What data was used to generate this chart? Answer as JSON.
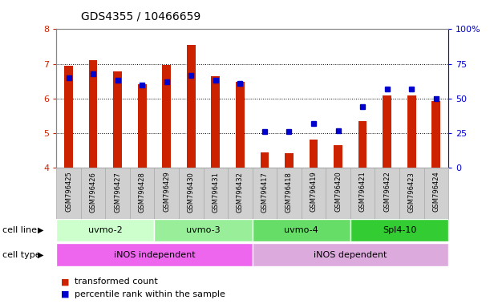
{
  "title": "GDS4355 / 10466659",
  "samples": [
    "GSM796425",
    "GSM796426",
    "GSM796427",
    "GSM796428",
    "GSM796429",
    "GSM796430",
    "GSM796431",
    "GSM796432",
    "GSM796417",
    "GSM796418",
    "GSM796419",
    "GSM796420",
    "GSM796421",
    "GSM796422",
    "GSM796423",
    "GSM796424"
  ],
  "transformed_count": [
    6.95,
    7.1,
    6.78,
    6.42,
    6.97,
    7.55,
    6.65,
    6.48,
    4.45,
    4.43,
    4.82,
    4.65,
    5.35,
    6.08,
    6.08,
    5.93
  ],
  "percentile_rank": [
    65,
    68,
    63,
    60,
    62,
    67,
    63,
    61,
    26,
    26,
    32,
    27,
    44,
    57,
    57,
    50
  ],
  "bar_color": "#cc2200",
  "dot_color": "#0000cc",
  "ylim_left": [
    4,
    8
  ],
  "ylim_right": [
    0,
    100
  ],
  "yticks_left": [
    4,
    5,
    6,
    7,
    8
  ],
  "yticks_right": [
    0,
    25,
    50,
    75,
    100
  ],
  "cell_line_groups": [
    {
      "label": "uvmo-2",
      "start": 0,
      "end": 3,
      "color": "#ccffcc"
    },
    {
      "label": "uvmo-3",
      "start": 4,
      "end": 7,
      "color": "#99ee99"
    },
    {
      "label": "uvmo-4",
      "start": 8,
      "end": 11,
      "color": "#66dd66"
    },
    {
      "label": "Spl4-10",
      "start": 12,
      "end": 15,
      "color": "#33cc33"
    }
  ],
  "cell_type_groups": [
    {
      "label": "iNOS independent",
      "start": 0,
      "end": 7,
      "color": "#ee66ee"
    },
    {
      "label": "iNOS dependent",
      "start": 8,
      "end": 15,
      "color": "#ddaadd"
    }
  ],
  "cell_line_label": "cell line",
  "cell_type_label": "cell type",
  "legend_red_label": "transformed count",
  "legend_blue_label": "percentile rank within the sample",
  "bar_color_legend": "#cc2200",
  "dot_color_legend": "#0000cc",
  "background_color": "#ffffff",
  "right_axis_color": "#0000cc",
  "left_axis_color": "#cc2200",
  "bar_width": 0.35,
  "label_bg_color": "#d0d0d0",
  "label_border_color": "#aaaaaa"
}
